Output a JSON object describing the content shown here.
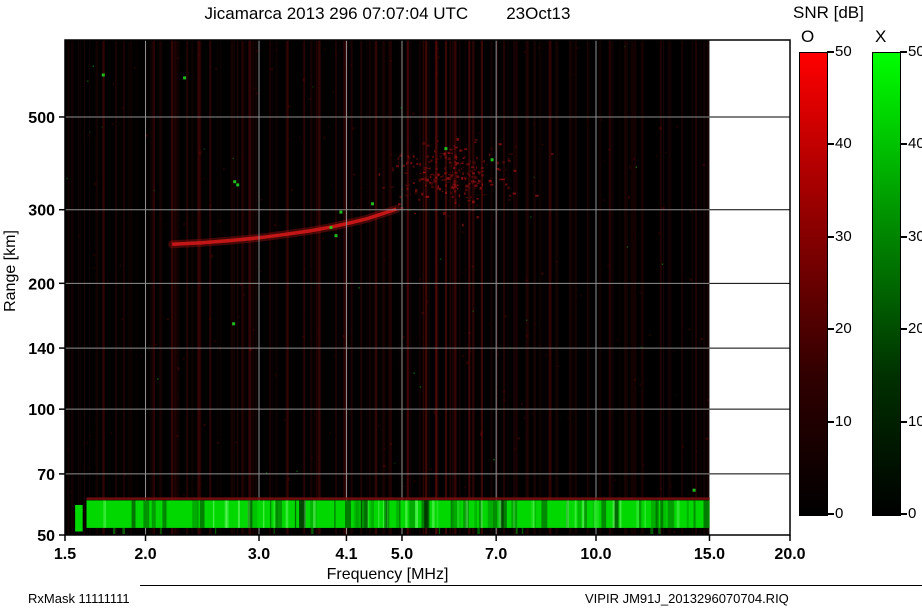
{
  "title": {
    "main": "Jicamarca 2013 296 07:07:04 UTC",
    "date": "23Oct13"
  },
  "colorbar": {
    "title": "SNR [dB]",
    "o_label": "O",
    "x_label": "X",
    "tick_values": [
      0,
      10,
      20,
      30,
      40,
      50
    ],
    "min": 0,
    "max": 50,
    "o_color": "#ff0000",
    "x_color": "#00ff00"
  },
  "footer": {
    "left": "RxMask 11111111",
    "right": "VIPIR  JM91J_2013296070704.RIQ"
  },
  "chart_data": {
    "type": "heatmap",
    "title": "Jicamarca 2013 296 07:07:04 UTC  23Oct13",
    "xlabel": "Frequency [MHz]",
    "ylabel": "Range [km]",
    "x_scale": "log",
    "y_scale": "log",
    "xlim": [
      1.5,
      20.0
    ],
    "ylim": [
      50,
      764
    ],
    "x_ticks": [
      1.5,
      2.0,
      3.0,
      4.1,
      5.0,
      7.0,
      10.0,
      15.0,
      20.0
    ],
    "x_tick_labels": [
      "1.5",
      "2.0",
      "3.0",
      "4.1",
      "5.0",
      "7.0",
      "10.0",
      "15.0",
      "20.0"
    ],
    "y_ticks": [
      50,
      70,
      100,
      140,
      200,
      300,
      500
    ],
    "data_freq_max": 15.0,
    "background": "#000000",
    "grid_color": "#8f8f8f",
    "ground_band": {
      "freq_min": 1.62,
      "freq_max": 15.0,
      "range_min": 52,
      "range_max": 60.5,
      "color": "#00d800",
      "top_line_color": "#7a1010",
      "lead_segment": {
        "freq_min": 1.555,
        "freq_max": 1.598,
        "range_min": 51,
        "range_max": 59
      }
    },
    "f_trace": {
      "color": "#b81414",
      "points": [
        [
          2.2,
          248
        ],
        [
          2.45,
          250
        ],
        [
          2.7,
          253
        ],
        [
          3.0,
          257
        ],
        [
          3.3,
          262
        ],
        [
          3.6,
          267
        ],
        [
          3.9,
          273
        ],
        [
          4.15,
          279
        ],
        [
          4.4,
          285
        ],
        [
          4.65,
          293
        ],
        [
          4.9,
          301
        ]
      ]
    },
    "spread_f": {
      "color": "#a01212",
      "freq_center": 5.9,
      "freq_sigma_log": 0.047,
      "range_center": 363,
      "range_sigma_log": 0.036,
      "count": 260
    },
    "rfi_stripes": [
      [
        1.72,
        0.18
      ],
      [
        1.85,
        0.12
      ],
      [
        2.06,
        0.1
      ],
      [
        2.2,
        0.22
      ],
      [
        2.32,
        0.14
      ],
      [
        2.52,
        0.18
      ],
      [
        2.72,
        0.1
      ],
      [
        2.9,
        0.16
      ],
      [
        3.12,
        0.1
      ],
      [
        3.32,
        0.18
      ],
      [
        3.52,
        0.12
      ],
      [
        3.72,
        0.2
      ],
      [
        3.95,
        0.12
      ],
      [
        4.1,
        0.16
      ],
      [
        4.32,
        0.12
      ],
      [
        4.55,
        0.18
      ],
      [
        4.8,
        0.14
      ],
      [
        5.1,
        0.22
      ],
      [
        5.45,
        0.28
      ],
      [
        5.65,
        0.32
      ],
      [
        5.85,
        0.26
      ],
      [
        6.05,
        0.22
      ],
      [
        6.35,
        0.18
      ],
      [
        6.65,
        0.26
      ],
      [
        7.2,
        0.14
      ],
      [
        7.8,
        0.1
      ],
      [
        8.5,
        0.14
      ],
      [
        9.3,
        0.1
      ],
      [
        10.5,
        0.13
      ],
      [
        11.5,
        0.1
      ],
      [
        12.6,
        0.13
      ],
      [
        13.6,
        0.1
      ],
      [
        14.3,
        0.13
      ]
    ],
    "green_speckles": [
      [
        2.75,
        350
      ],
      [
        2.78,
        344
      ],
      [
        3.88,
        272
      ],
      [
        4.02,
        296
      ],
      [
        3.95,
        260
      ],
      [
        2.74,
        160
      ],
      [
        5.85,
        420
      ],
      [
        4.5,
        310
      ],
      [
        6.9,
        395
      ],
      [
        1.72,
        630
      ],
      [
        14.2,
        64
      ],
      [
        2.3,
        620
      ]
    ]
  }
}
